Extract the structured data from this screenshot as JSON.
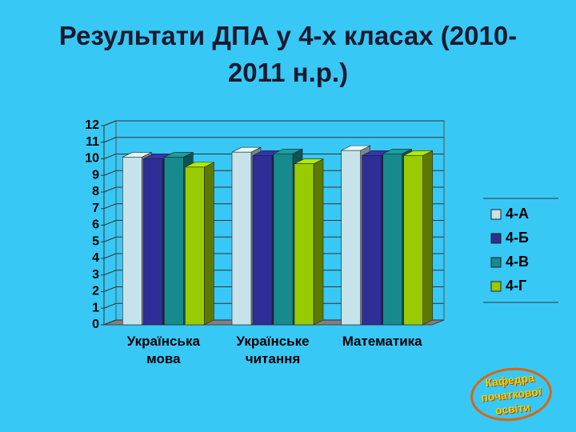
{
  "chart_data": {
    "type": "bar3d",
    "title": "Результати ДПА у 4-х класах (2010-2011 н.р.)",
    "categories": [
      "Українська мова",
      "Українське читання",
      "Математика"
    ],
    "series": [
      {
        "name": "4-А",
        "color": "#c6e2ea",
        "values": [
          10.1,
          10.4,
          10.5
        ]
      },
      {
        "name": "4-Б",
        "color": "#2e2e96",
        "values": [
          10.0,
          10.2,
          10.2
        ]
      },
      {
        "name": "4-В",
        "color": "#168a8c",
        "values": [
          10.1,
          10.3,
          10.3
        ]
      },
      {
        "name": "4-Г",
        "color": "#99cc00",
        "values": [
          9.5,
          9.7,
          10.2
        ]
      }
    ],
    "ylim": [
      0,
      12
    ],
    "yticks": [
      0,
      1,
      2,
      3,
      4,
      5,
      6,
      7,
      8,
      9,
      10,
      11,
      12
    ],
    "grid": true,
    "legend": "right"
  },
  "stamp": "Кафедра початкової освіти"
}
